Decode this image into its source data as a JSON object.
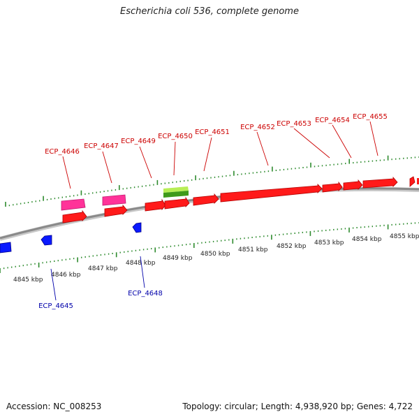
{
  "title": "Escherichia coli 536, complete genome",
  "footer": {
    "accession": "Accession: NC_008253",
    "topology": "Topology: circular; Length: 4,938,920 bp; Genes: 4,722"
  },
  "colors": {
    "backbone": "#8a8a8a",
    "tick": "#2e8b2e",
    "forward_gene": "#ff1a1a",
    "reverse_gene": "#0a1aff",
    "pseudo_gene": "#ff3399",
    "rna_gene": "#8fd62e",
    "forward_label": "#cc0000",
    "reverse_label": "#0000aa"
  },
  "scale_labels": [
    "4845 kbp",
    "4846 kbp",
    "4847 kbp",
    "4848 kbp",
    "4849 kbp",
    "4850 kbp",
    "4851 kbp",
    "4852 kbp",
    "4853 kbp",
    "4854 kbp",
    "4855 kbp"
  ],
  "gene_labels": {
    "forward": [
      "ECP_4646",
      "ECP_4647",
      "ECP_4649",
      "ECP_4650",
      "ECP_4651",
      "ECP_4652",
      "ECP_4653",
      "ECP_4654",
      "ECP_4655"
    ],
    "reverse": [
      "ECP_4645",
      "ECP_4648"
    ]
  }
}
